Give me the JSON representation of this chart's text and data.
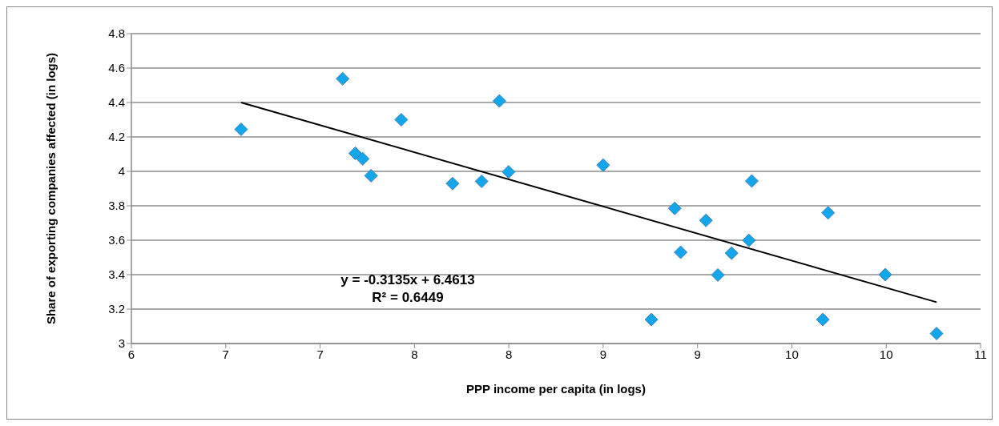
{
  "chart_data": {
    "type": "scatter",
    "xlabel": "PPP income per capita (in logs)",
    "ylabel": "Share of exporting companies affected (in logs)",
    "xlim": [
      6,
      11
    ],
    "xticks": [
      6,
      {
        "value": 6.5556,
        "label": "7"
      },
      {
        "value": 7.1111,
        "label": "7"
      },
      {
        "value": 7.6667,
        "label": "8"
      },
      {
        "value": 8.2222,
        "label": "8"
      },
      {
        "value": 8.7778,
        "label": "9"
      },
      {
        "value": 9.3333,
        "label": "9"
      },
      {
        "value": 9.8889,
        "label": "10"
      },
      {
        "value": 10.4444,
        "label": "10"
      },
      11
    ],
    "ylim": [
      3,
      4.8
    ],
    "yticks": [
      3,
      3.2,
      3.4,
      3.6,
      3.8,
      4,
      4.2,
      4.4,
      4.6,
      4.8
    ],
    "grid": "y",
    "annotations": [
      "y = -0.3135x + 6.4613",
      "R² = 0.6449"
    ],
    "series": [
      {
        "marker": "diamond",
        "color": "#12a6ea",
        "x": [
          6.646,
          7.244,
          7.589,
          8.167,
          7.318,
          7.362,
          7.411,
          7.891,
          8.062,
          8.221,
          8.778,
          9.062,
          9.199,
          9.234,
          9.383,
          9.453,
          9.534,
          9.636,
          9.653,
          10.102,
          10.071,
          10.439,
          10.741
        ],
        "values": [
          4.244,
          4.538,
          4.3,
          4.409,
          4.105,
          4.073,
          3.975,
          3.929,
          3.942,
          3.997,
          4.036,
          3.139,
          3.785,
          3.53,
          3.715,
          3.398,
          3.525,
          3.599,
          3.944,
          3.759,
          3.139,
          3.4,
          3.058
        ]
      },
      {
        "type": "line",
        "color": "#000000",
        "line_style": "solid",
        "x": [
          6.646,
          10.741
        ],
        "values": [
          4.4,
          3.24
        ]
      }
    ]
  }
}
